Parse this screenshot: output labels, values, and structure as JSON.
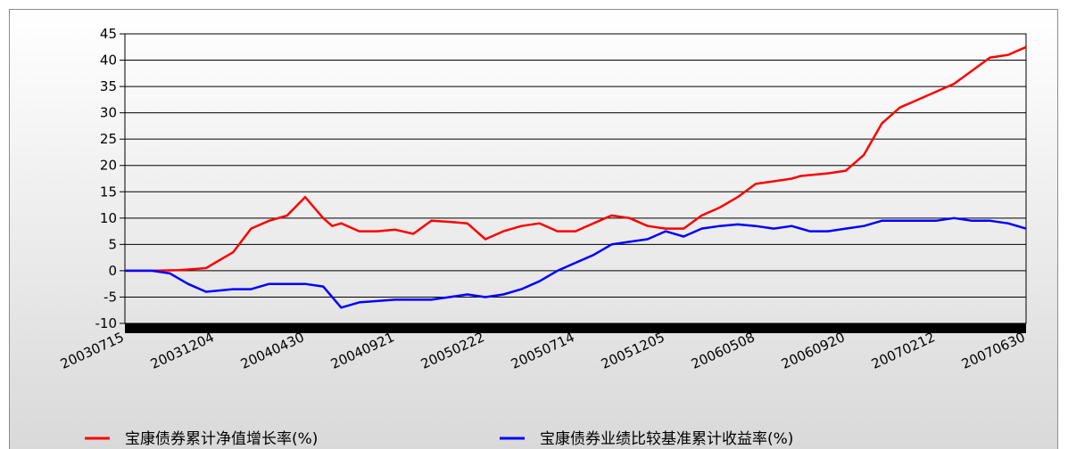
{
  "chart_data": {
    "type": "line",
    "title": "",
    "xlabel": "",
    "ylabel": "",
    "ylim": [
      -10,
      45
    ],
    "y_ticks": [
      45,
      40,
      35,
      30,
      25,
      20,
      15,
      10,
      5,
      0,
      -5,
      -10
    ],
    "x_tick_labels": [
      "20030715",
      "20031204",
      "20040430",
      "20040921",
      "20050222",
      "20050714",
      "20051205",
      "20060508",
      "20060920",
      "20070212",
      "20070630"
    ],
    "grid": "horizontal",
    "legend_position": "bottom",
    "series": [
      {
        "name": "宝康债券累计净值增长率(%)",
        "color": "#ff0000",
        "x": [
          0,
          0.3,
          0.6,
          0.9,
          1.0,
          1.2,
          1.4,
          1.6,
          1.8,
          2.0,
          2.2,
          2.3,
          2.4,
          2.6,
          2.8,
          3.0,
          3.2,
          3.4,
          3.6,
          3.8,
          4.0,
          4.2,
          4.4,
          4.6,
          4.8,
          5.0,
          5.2,
          5.4,
          5.6,
          5.8,
          6.0,
          6.2,
          6.4,
          6.6,
          6.8,
          7.0,
          7.2,
          7.4,
          7.5,
          7.8,
          8.0,
          8.2,
          8.4,
          8.6,
          8.8,
          9.0,
          9.2,
          9.4,
          9.6,
          9.8,
          10.0
        ],
        "y": [
          0,
          0,
          0.1,
          0.5,
          1.5,
          3.5,
          8,
          9.5,
          10.5,
          14,
          10,
          8.5,
          9,
          7.5,
          7.5,
          7.8,
          7,
          9.5,
          9.3,
          9,
          6,
          7.5,
          8.5,
          9,
          7.5,
          7.5,
          9,
          10.5,
          10,
          8.5,
          8,
          8,
          10.5,
          12,
          14,
          16.5,
          17,
          17.5,
          18,
          18.5,
          19,
          22,
          28,
          31,
          32.5,
          34,
          35.5,
          38,
          40.5,
          41,
          42.5
        ]
      },
      {
        "name": "宝康债券业绩比较基准累计收益率(%)",
        "color": "#0000ff",
        "x": [
          0,
          0.3,
          0.5,
          0.7,
          0.9,
          1.2,
          1.4,
          1.6,
          1.8,
          2.0,
          2.2,
          2.4,
          2.6,
          3.0,
          3.4,
          3.6,
          3.8,
          4.0,
          4.2,
          4.4,
          4.6,
          4.8,
          5.0,
          5.2,
          5.4,
          5.6,
          5.8,
          6.0,
          6.2,
          6.4,
          6.6,
          6.8,
          7.0,
          7.2,
          7.4,
          7.6,
          7.8,
          8.0,
          8.2,
          8.4,
          8.6,
          8.8,
          9.0,
          9.2,
          9.4,
          9.6,
          9.8,
          10.0
        ],
        "y": [
          0,
          0,
          -0.5,
          -2.5,
          -4,
          -3.5,
          -3.5,
          -2.5,
          -2.5,
          -2.5,
          -3,
          -7,
          -6,
          -5.5,
          -5.5,
          -5,
          -4.5,
          -5,
          -4.5,
          -3.5,
          -2,
          0,
          1.5,
          3,
          5,
          5.5,
          6,
          7.5,
          6.5,
          8,
          8.5,
          8.8,
          8.5,
          8,
          8.5,
          7.5,
          7.5,
          8,
          8.5,
          9.5,
          9.5,
          9.5,
          9.5,
          10,
          9.5,
          9.5,
          9,
          8
        ]
      }
    ]
  }
}
